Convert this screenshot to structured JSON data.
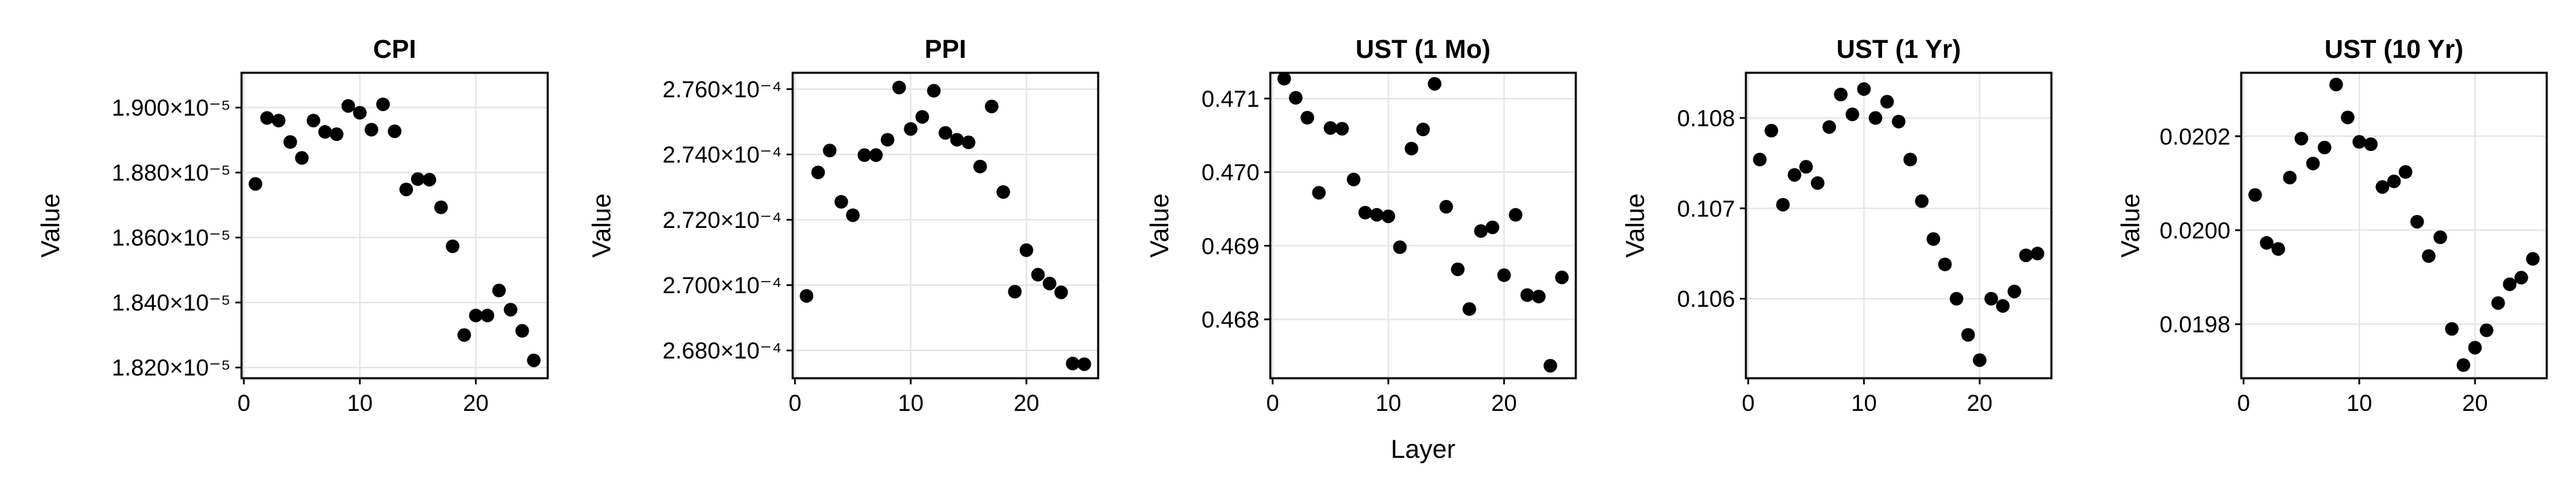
{
  "chart_data": [
    {
      "type": "scatter",
      "title": "CPI",
      "xlabel": "",
      "ylabel": "Value",
      "xlim": [
        -0.2,
        26.2
      ],
      "ylim": [
        1.8167e-05,
        1.9107e-05
      ],
      "xticks": [
        0,
        10,
        20
      ],
      "xtick_labels": [
        "0",
        "10",
        "20"
      ],
      "yticks": [
        1.82e-05,
        1.84e-05,
        1.86e-05,
        1.88e-05,
        1.9e-05
      ],
      "ytick_labels": [
        "1.820×10⁻⁵",
        "1.840×10⁻⁵",
        "1.860×10⁻⁵",
        "1.880×10⁻⁵",
        "1.900×10⁻⁵"
      ],
      "grid": true,
      "x": [
        1,
        2,
        3,
        4,
        5,
        6,
        7,
        8,
        9,
        10,
        11,
        12,
        13,
        14,
        15,
        16,
        17,
        18,
        19,
        20,
        21,
        22,
        23,
        24,
        25
      ],
      "y": [
        1.8765e-05,
        1.8968e-05,
        1.896e-05,
        1.8894e-05,
        1.8845e-05,
        1.896e-05,
        1.8925e-05,
        1.8918e-05,
        1.9005e-05,
        1.8984e-05,
        1.8932e-05,
        1.901e-05,
        1.8927e-05,
        1.8748e-05,
        1.878e-05,
        1.8778e-05,
        1.8693e-05,
        1.8573e-05,
        1.83e-05,
        1.836e-05,
        1.836e-05,
        1.8437e-05,
        1.8378e-05,
        1.8313e-05,
        1.8222e-05
      ]
    },
    {
      "type": "scatter",
      "title": "PPI",
      "xlabel": "",
      "ylabel": "Value",
      "xlim": [
        -0.2,
        26.2
      ],
      "ylim": [
        0.00026715,
        0.0002765
      ],
      "xticks": [
        0,
        10,
        20
      ],
      "xtick_labels": [
        "0",
        "10",
        "20"
      ],
      "yticks": [
        0.000268,
        0.00027,
        0.000272,
        0.000274,
        0.000276
      ],
      "ytick_labels": [
        "2.680×10⁻⁴",
        "2.700×10⁻⁴",
        "2.720×10⁻⁴",
        "2.740×10⁻⁴",
        "2.760×10⁻⁴"
      ],
      "grid": true,
      "x": [
        1,
        2,
        3,
        4,
        5,
        6,
        7,
        8,
        9,
        10,
        11,
        12,
        13,
        14,
        15,
        16,
        17,
        18,
        19,
        20,
        21,
        22,
        23,
        24,
        25
      ],
      "y": [
        0.00026967,
        0.00027345,
        0.00027412,
        0.00027255,
        0.00027214,
        0.00027398,
        0.00027398,
        0.00027445,
        0.00027605,
        0.00027478,
        0.00027515,
        0.00027595,
        0.00027466,
        0.00027445,
        0.00027437,
        0.00027363,
        0.00027547,
        0.00027285,
        0.0002698,
        0.00027107,
        0.00027032,
        0.00027005,
        0.00026978,
        0.0002676,
        0.00026758
      ]
    },
    {
      "type": "scatter",
      "title": "UST (1 Mo)",
      "xlabel": "Layer",
      "ylabel": "Value",
      "xlim": [
        -0.2,
        26.2
      ],
      "ylim": [
        0.4672,
        0.47135
      ],
      "xticks": [
        0,
        10,
        20
      ],
      "xtick_labels": [
        "0",
        "10",
        "20"
      ],
      "yticks": [
        0.468,
        0.469,
        0.47,
        0.471
      ],
      "ytick_labels": [
        "0.468",
        "0.469",
        "0.470",
        "0.471"
      ],
      "grid": true,
      "x": [
        1,
        2,
        3,
        4,
        5,
        6,
        7,
        8,
        9,
        10,
        11,
        12,
        13,
        14,
        15,
        16,
        17,
        18,
        19,
        20,
        21,
        22,
        23,
        24,
        25
      ],
      "y": [
        0.47127,
        0.47101,
        0.47074,
        0.46972,
        0.4706,
        0.47059,
        0.4699,
        0.46945,
        0.46942,
        0.4694,
        0.46898,
        0.47032,
        0.47058,
        0.4712,
        0.46953,
        0.46868,
        0.46814,
        0.4692,
        0.46925,
        0.4686,
        0.46942,
        0.46833,
        0.46831,
        0.46737,
        0.46857
      ]
    },
    {
      "type": "scatter",
      "title": "UST (1 Yr)",
      "xlabel": "",
      "ylabel": "Value",
      "xlim": [
        -0.2,
        26.2
      ],
      "ylim": [
        0.10512,
        0.1085
      ],
      "xticks": [
        0,
        10,
        20
      ],
      "xtick_labels": [
        "0",
        "10",
        "20"
      ],
      "yticks": [
        0.106,
        0.107,
        0.108
      ],
      "ytick_labels": [
        "0.106",
        "0.107",
        "0.108"
      ],
      "grid": true,
      "x": [
        1,
        2,
        3,
        4,
        5,
        6,
        7,
        8,
        9,
        10,
        11,
        12,
        13,
        14,
        15,
        16,
        17,
        18,
        19,
        20,
        21,
        22,
        23,
        24,
        25
      ],
      "y": [
        0.10754,
        0.10786,
        0.10704,
        0.10737,
        0.10746,
        0.10728,
        0.1079,
        0.10826,
        0.10804,
        0.10832,
        0.108,
        0.10818,
        0.10796,
        0.10754,
        0.10708,
        0.10666,
        0.10638,
        0.106,
        0.1056,
        0.10532,
        0.106,
        0.10592,
        0.10608,
        0.10648,
        0.1065
      ]
    },
    {
      "type": "scatter",
      "title": "UST (10 Yr)",
      "xlabel": "",
      "ylabel": "Value",
      "xlim": [
        -0.2,
        26.2
      ],
      "ylim": [
        0.019685,
        0.020335
      ],
      "xticks": [
        0,
        10,
        20
      ],
      "xtick_labels": [
        "0",
        "10",
        "20"
      ],
      "yticks": [
        0.0198,
        0.02,
        0.0202
      ],
      "ytick_labels": [
        "0.0198",
        "0.0200",
        "0.0202"
      ],
      "grid": true,
      "x": [
        1,
        2,
        3,
        4,
        5,
        6,
        7,
        8,
        9,
        10,
        11,
        12,
        13,
        14,
        15,
        16,
        17,
        18,
        19,
        20,
        21,
        22,
        23,
        24,
        25
      ],
      "y": [
        0.020075,
        0.019973,
        0.01996,
        0.020112,
        0.020195,
        0.020142,
        0.020176,
        0.02031,
        0.02024,
        0.020188,
        0.020183,
        0.020092,
        0.020104,
        0.020124,
        0.020018,
        0.019945,
        0.019985,
        0.01979,
        0.019713,
        0.01975,
        0.019787,
        0.019845,
        0.019885,
        0.019899,
        0.019939
      ]
    }
  ]
}
